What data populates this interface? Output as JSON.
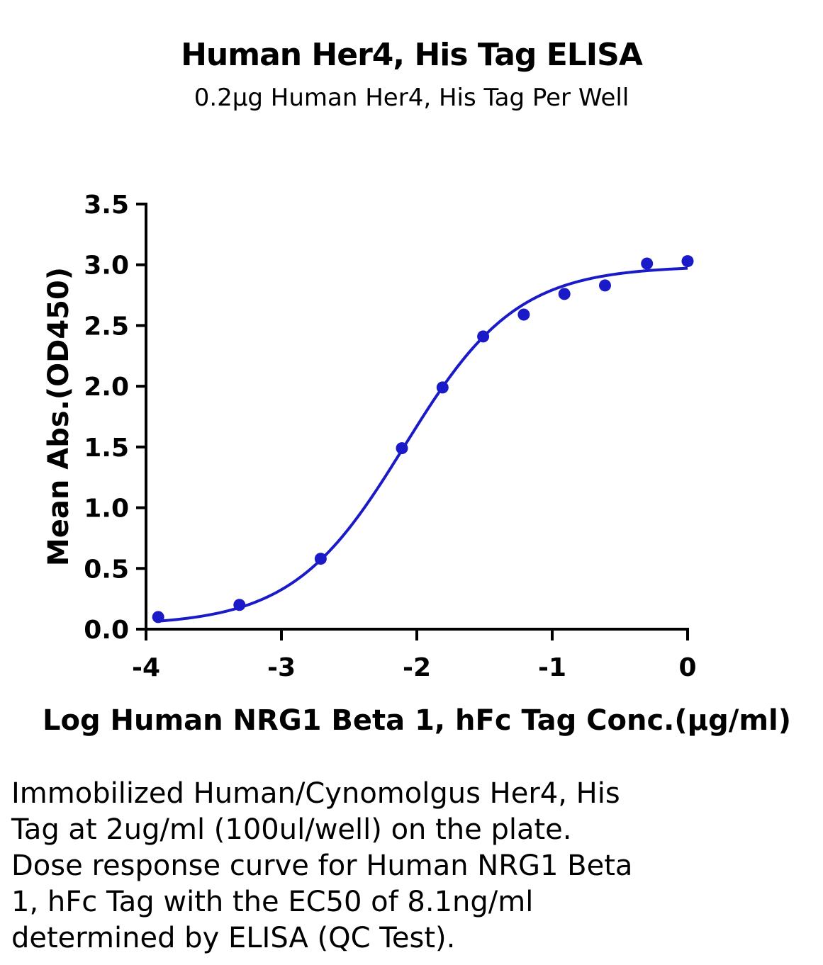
{
  "chart_data": {
    "type": "scatter",
    "title": "Human Her4, His Tag ELISA",
    "subtitle": "0.2µg Human Her4, His Tag Per Well",
    "xlabel": "Log Human NRG1 Beta 1, hFc Tag Conc.(µg/ml)",
    "ylabel": "Mean Abs.(OD450)",
    "xlim": [
      -4,
      0
    ],
    "ylim": [
      0,
      3.5
    ],
    "xticks": [
      -4,
      -3,
      -2,
      -1,
      0
    ],
    "xtick_labels": [
      "-4",
      "-3",
      "-2",
      "-1",
      "0"
    ],
    "yticks": [
      0,
      0.5,
      1.0,
      1.5,
      2.0,
      2.5,
      3.0,
      3.5
    ],
    "ytick_labels": [
      "0.0",
      "0.5",
      "1.0",
      "1.5",
      "2.0",
      "2.5",
      "3.0",
      "3.5"
    ],
    "grid": false,
    "series": [
      {
        "color": "#1a1ac8",
        "x": [
          -3.91,
          -3.31,
          -2.71,
          -2.11,
          -1.81,
          -1.51,
          -1.21,
          -0.91,
          -0.61,
          -0.3,
          0.0
        ],
        "y": [
          0.1,
          0.2,
          0.58,
          1.49,
          1.99,
          2.41,
          2.59,
          2.76,
          2.83,
          3.01,
          3.03
        ],
        "fit": {
          "model": "4PL",
          "bottom": 0.03,
          "top": 2.99,
          "log_ec50": -2.09,
          "hill": 1.05
        }
      }
    ]
  },
  "caption": {
    "lines": [
      "Immobilized Human/Cynomolgus Her4, His",
      "Tag at 2ug/ml (100ul/well) on the plate.",
      "Dose response curve for Human NRG1 Beta",
      "1, hFc Tag with the EC50 of 8.1ng/ml",
      "determined by ELISA (QC Test)."
    ]
  }
}
